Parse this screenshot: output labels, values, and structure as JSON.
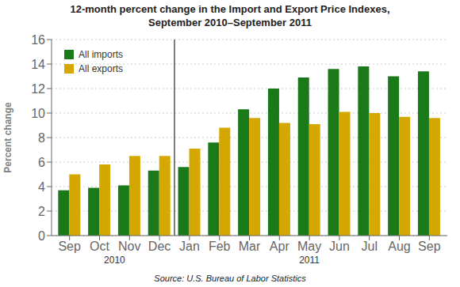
{
  "chart_data": {
    "type": "bar",
    "title": "12-month percent change in the Import and Export Price Indexes,",
    "subtitle": "September 2010–September 2011",
    "ylabel": "Percent change",
    "source": "Source: U.S. Bureau of Labor Statistics",
    "annotations": [
      "2010",
      "2011"
    ],
    "categories": [
      "Sep",
      "Oct",
      "Nov",
      "Dec",
      "Jan",
      "Feb",
      "Mar",
      "Apr",
      "May",
      "Jun",
      "Jul",
      "Aug",
      "Sep"
    ],
    "series": [
      {
        "name": "All imports",
        "color": "#1a7a1a",
        "values": [
          3.7,
          3.9,
          4.1,
          5.3,
          5.6,
          7.6,
          10.3,
          12.0,
          12.9,
          13.6,
          13.8,
          13.0,
          13.4
        ]
      },
      {
        "name": "All exports",
        "color": "#d4a800",
        "values": [
          5.0,
          5.8,
          6.5,
          6.5,
          7.1,
          8.8,
          9.6,
          9.2,
          9.1,
          10.1,
          10.0,
          9.7,
          9.6
        ]
      }
    ],
    "ylim": [
      0,
      16
    ],
    "yticks": [
      0,
      2,
      4,
      6,
      8,
      10,
      12,
      14,
      16
    ],
    "grid": true,
    "legend": "upper left"
  }
}
